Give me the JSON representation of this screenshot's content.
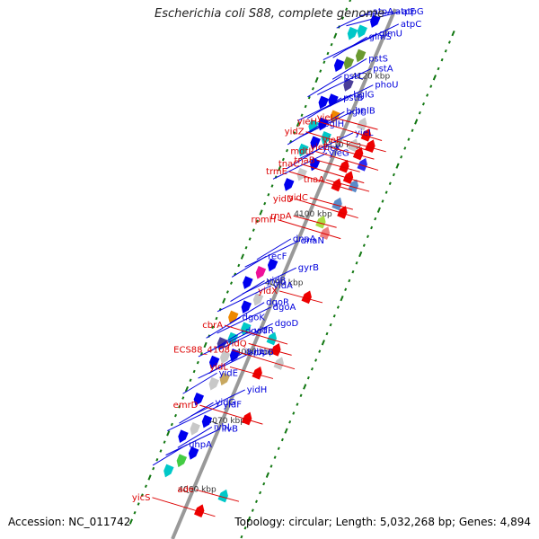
{
  "header": {
    "title": "Escherichia coli S88, complete genome"
  },
  "footer": {
    "accession": "Accession: NC_011742",
    "summary": "Topology: circular; Length: 5,032,268 bp; Genes: 4,894"
  },
  "colors": {
    "backbone": "#999999",
    "plus_label": "#0000dd",
    "minus_label": "#dd0000",
    "tick": "#117711"
  },
  "scale_labels": [
    {
      "text": "4120 kbp",
      "t": 0.135
    },
    {
      "text": "4110 kbp",
      "t": 0.265
    },
    {
      "text": "4100 kbp",
      "t": 0.395
    },
    {
      "text": "4090 kbp",
      "t": 0.525
    },
    {
      "text": "4080 kbp",
      "t": 0.655
    },
    {
      "text": "4070 kbp",
      "t": 0.785
    },
    {
      "text": "4060 kbp",
      "t": 0.915
    }
  ],
  "plus_genes": [
    {
      "name": "atpF",
      "t": 0.035,
      "color": "#0000ee"
    },
    {
      "name": "atpG",
      "t": 0.06,
      "color": "#00c8c8"
    },
    {
      "name": "atpA",
      "t": 0.07,
      "color": "#00c8c8"
    },
    {
      "name": "atpC",
      "t": 0.1,
      "color": "#6a9a30"
    },
    {
      "name": "glmS",
      "t": 0.12,
      "color": "#6a9a30"
    },
    {
      "name": "glmU",
      "t": 0.13,
      "color": "#0000ee"
    },
    {
      "name": "pstS",
      "t": 0.155,
      "color": "#4a3e9a"
    },
    {
      "name": "pstA",
      "t": 0.19,
      "color": "#0000ee"
    },
    {
      "name": "pstC",
      "t": 0.2,
      "color": "#0000ee"
    },
    {
      "name": "phoU",
      "t": 0.215,
      "color": "#ee8800"
    },
    {
      "name": "pstB",
      "t": 0.235,
      "color": "#0000ee"
    },
    {
      "name": "bglG",
      "t": 0.245,
      "color": "#00c8c8"
    },
    {
      "name": "bglF",
      "t": 0.255,
      "color": "#00c8c8"
    },
    {
      "name": "bglB",
      "t": 0.27,
      "color": "#0000ee"
    },
    {
      "name": "bglH",
      "t": 0.29,
      "color": "#00c8c8"
    },
    {
      "name": "yieL",
      "t": 0.305,
      "color": "#0000ee"
    },
    {
      "name": "yieK",
      "t": 0.33,
      "color": "#c8c8c8"
    },
    {
      "name": "yieG",
      "t": 0.355,
      "color": "#0000ee"
    },
    {
      "name": "dnaA",
      "t": 0.495,
      "color": "#0000ee"
    },
    {
      "name": "dnaN",
      "t": 0.515,
      "color": "#ee1199"
    },
    {
      "name": "recF",
      "t": 0.54,
      "color": "#0000ee"
    },
    {
      "name": "gyrB",
      "t": 0.56,
      "color": "#c8c8c8"
    },
    {
      "name": "yidB",
      "t": 0.58,
      "color": "#0000ee"
    },
    {
      "name": "yidA",
      "t": 0.605,
      "color": "#ee8800"
    },
    {
      "name": "dgoR",
      "t": 0.615,
      "color": "#00c8c8"
    },
    {
      "name": "dgoA",
      "t": 0.64,
      "color": "#00c8c8"
    },
    {
      "name": "dgoK",
      "t": 0.655,
      "color": "#4a3e9a"
    },
    {
      "name": "dgoD",
      "t": 0.665,
      "color": "#0000ee"
    },
    {
      "name": "dgoT",
      "t": 0.675,
      "color": "#c8c8c8"
    },
    {
      "name": "yidR",
      "t": 0.69,
      "color": "#0000ee"
    },
    {
      "name": "ibpA",
      "t": 0.71,
      "color": "#c8a860"
    },
    {
      "name": "ibpB",
      "t": 0.725,
      "color": "#c8c8c8"
    },
    {
      "name": "yidE",
      "t": 0.76,
      "color": "#0000ee"
    },
    {
      "name": "yidH",
      "t": 0.79,
      "color": "#0000ee"
    },
    {
      "name": "yidG",
      "t": 0.81,
      "color": "#c8c8c8"
    },
    {
      "name": "yidF",
      "t": 0.83,
      "color": "#0000ee"
    },
    {
      "name": "ivbL",
      "t": 0.85,
      "color": "#0000ee"
    },
    {
      "name": "ilvB",
      "t": 0.87,
      "color": "#44cc44"
    },
    {
      "name": "uhpA",
      "t": 0.895,
      "color": "#00c8c8"
    }
  ],
  "minus_genes": [
    {
      "name": "yieI",
      "t": 0.205,
      "color": "#c8c8c8"
    },
    {
      "name": "yieH",
      "t": 0.22,
      "color": "#ee0000"
    },
    {
      "name": "yieF",
      "t": 0.235,
      "color": "#ee0000"
    },
    {
      "name": "yidZ",
      "t": 0.245,
      "color": "#c8c8c8"
    },
    {
      "name": "yieE",
      "t": 0.255,
      "color": "#ee0000"
    },
    {
      "name": "mdtL",
      "t": 0.27,
      "color": "#2a2aee"
    },
    {
      "name": "tnaB",
      "t": 0.285,
      "color": "#ee0000"
    },
    {
      "name": "tnaC",
      "t": 0.3,
      "color": "#ee0000"
    },
    {
      "name": "tnaA",
      "t": 0.31,
      "color": "#5a8ac8"
    },
    {
      "name": "trmE",
      "t": 0.32,
      "color": "#ee0000"
    },
    {
      "name": "yidC",
      "t": 0.35,
      "color": "#5a8ac8"
    },
    {
      "name": "yidD",
      "t": 0.36,
      "color": "#ee0000"
    },
    {
      "name": "rnpA",
      "t": 0.39,
      "color": "#aadd44"
    },
    {
      "name": "rpmH",
      "t": 0.405,
      "color": "#ee8080"
    },
    {
      "name": "yidX",
      "t": 0.52,
      "color": "#ee0000"
    },
    {
      "name": "cbrA",
      "t": 0.61,
      "color": "#00c8c8"
    },
    {
      "name": "yidQ",
      "t": 0.625,
      "color": "#ee0000"
    },
    {
      "name": "ECS88_4108",
      "t": 0.645,
      "color": "#c8c8c8"
    },
    {
      "name": "yidL",
      "t": 0.675,
      "color": "#ee0000"
    },
    {
      "name": "emrD",
      "t": 0.755,
      "color": "#ee0000"
    },
    {
      "name": "ade",
      "t": 0.895,
      "color": "#00c8c8"
    },
    {
      "name": "yicS",
      "t": 0.935,
      "color": "#ee0000"
    }
  ]
}
